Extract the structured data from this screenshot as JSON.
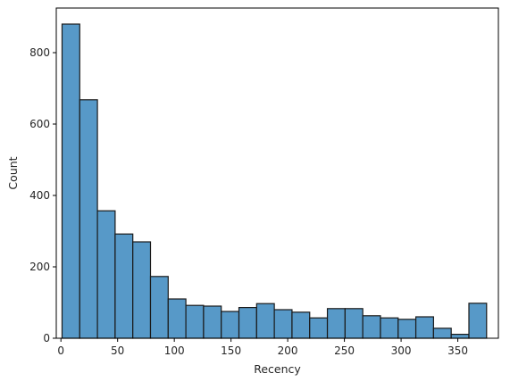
{
  "chart_data": {
    "type": "bar",
    "title": "",
    "xlabel": "Recency",
    "ylabel": "Count",
    "grid": false,
    "xlim": [
      -4.1,
      385.8
    ],
    "ylim": [
      0,
      925
    ],
    "x_ticks": [
      0,
      50,
      100,
      150,
      200,
      250,
      300,
      350
    ],
    "y_ticks": [
      0,
      200,
      400,
      600,
      800
    ],
    "bin_edges": [
      1,
      16.6,
      32.2,
      47.8,
      63.4,
      79,
      94.6,
      110.2,
      125.8,
      141.4,
      157,
      172.6,
      188.2,
      203.8,
      219.4,
      235,
      250.6,
      266.2,
      281.8,
      297.4,
      313,
      328.6,
      344.2,
      359.8,
      375.4
    ],
    "series": [
      {
        "values": [
          880,
          668,
          357,
          292,
          270,
          173,
          110,
          92,
          90,
          75,
          86,
          97,
          80,
          73,
          57,
          83,
          83,
          63,
          57,
          53,
          60,
          28,
          11,
          98
        ]
      }
    ],
    "bar_color": "#5799c8",
    "edge_color": "#1a1a1a"
  }
}
